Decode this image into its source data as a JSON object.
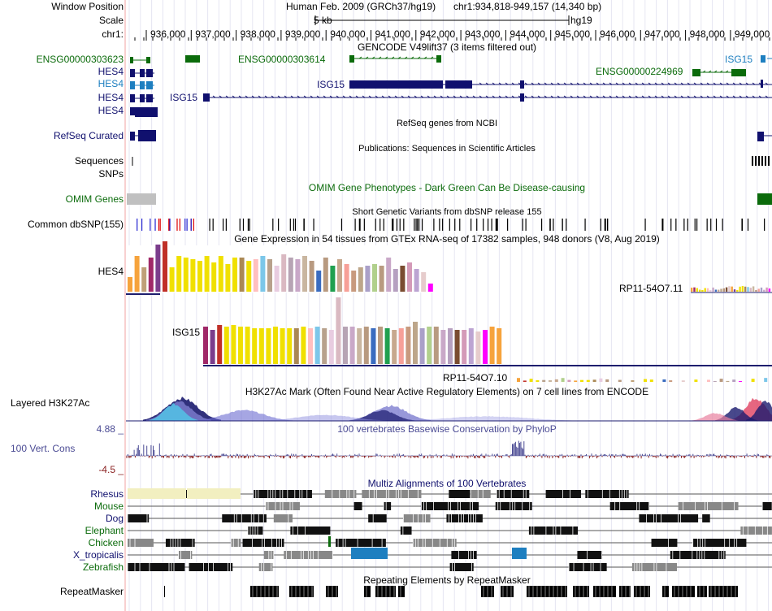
{
  "header": {
    "position_label": "Window Position",
    "assembly_text": "Human Feb. 2009 (GRCh37/hg19)",
    "coords_text": "chr1:934,818-949,157 (14,340 bp)",
    "scale_label": "Scale",
    "scale_text": "5 kb",
    "scale_db": "hg19",
    "chrom_label": "chr1:",
    "ticks": [
      "936,000",
      "937,000",
      "938,000",
      "939,000",
      "940,000",
      "941,000",
      "942,000",
      "943,000",
      "944,000",
      "945,000",
      "946,000",
      "947,000",
      "948,000",
      "949,000"
    ]
  },
  "tracks": {
    "gencode": {
      "title": "GENCODE V49lift37 (3 items filtered out)",
      "labels": [
        "ENSG00000303623",
        "HES4",
        "HES4",
        "HES4",
        "HES4"
      ],
      "gene_labels": [
        "ENSG00000303614",
        "ENSG00000224969",
        "ISG15",
        "ISG15",
        "ISG15"
      ]
    },
    "refseq": {
      "label": "RefSeq Curated",
      "title": "RefSeq genes from NCBI"
    },
    "publications": {
      "label": "Sequences",
      "title": "Publications: Sequences in Scientific Articles"
    },
    "snps": {
      "label": "SNPs"
    },
    "omim": {
      "label": "OMIM Genes",
      "title": "OMIM Gene Phenotypes - Dark Green Can Be Disease-causing"
    },
    "dbsnp": {
      "label": "Common dbSNP(155)",
      "title": "Short Genetic Variants from dbSNP release 155"
    },
    "gtex": {
      "title": "Gene Expression in 54 tissues from GTEx RNA-seq of 17382 samples, 948 donors (V8, Aug 2019)",
      "genes": [
        "HES4",
        "ISG15",
        "RP11-54O7.11",
        "RP11-54O7.10"
      ]
    },
    "h3k27ac": {
      "label": "Layered H3K27Ac",
      "title": "H3K27Ac Mark (Often Found Near Active Regulatory Elements) on 7 cell lines from ENCODE"
    },
    "conservation": {
      "label": "100 Vert. Cons",
      "title": "100 vertebrates Basewise Conservation by PhyloP",
      "max": "4.88 _",
      "min": "-4.5 _"
    },
    "multiz": {
      "title": "Multiz Alignments of 100 Vertebrates",
      "species": [
        "Rhesus",
        "Mouse",
        "Dog",
        "Elephant",
        "Chicken",
        "X_tropicalis",
        "Zebrafish"
      ]
    },
    "repeatmasker": {
      "label": "RepeatMasker",
      "title": "Repeating Elements by RepeatMasker"
    }
  },
  "colors": {
    "gencode_green": "#0b6b0b",
    "navy": "#10106e",
    "blue_gene": "#1e7fc0",
    "conservation": "#4b4b94",
    "conservation_neg": "#8b2222",
    "gtex_baseline": "#1e1e6e"
  }
}
